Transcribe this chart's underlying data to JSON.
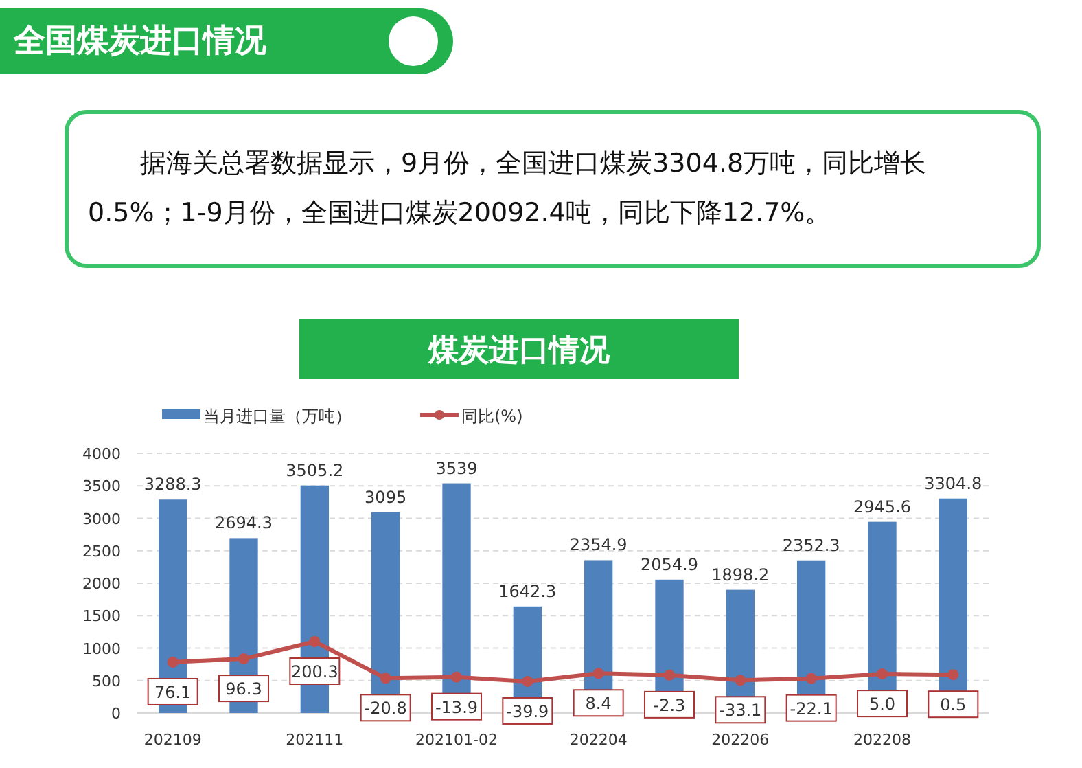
{
  "chart_data": {
    "type": "bar",
    "title": "煤炭进口情况",
    "annotations": [
      "全国煤炭进口情况",
      "据海关总署数据显示，9月份，全国进口煤炭3304.8万吨，同比增长0.5%；1-9月份，全国进口煤炭20092.4吨，同比下降12.7%。"
    ],
    "categories": [
      "202109",
      null,
      "202111",
      null,
      "202101-02",
      null,
      "202204",
      null,
      "202206",
      null,
      "202208",
      null
    ],
    "series": [
      {
        "name": "当月进口量（万吨）",
        "color": "#4f81bd",
        "values": [
          3288.3,
          2694.3,
          3505.2,
          3095,
          3539,
          1642.3,
          2354.9,
          2054.9,
          1898.2,
          2352.3,
          2945.6,
          3304.8
        ]
      },
      {
        "name": "同比(%)",
        "type": "line",
        "axis": "y2",
        "color": "#c0504d",
        "marker": "circle",
        "value_labels": [
          "76.1",
          "96.3",
          "200.3",
          "-20.8",
          "-13.9",
          "-39.9",
          "8.4",
          "-2.3",
          "-33.1",
          "-22.1",
          "5.0",
          "0.5"
        ],
        "values": [
          76.1,
          96.3,
          200.3,
          -20.8,
          -13.9,
          -39.9,
          8.4,
          -2.3,
          -33.1,
          -22.1,
          5.0,
          0.5
        ]
      }
    ],
    "data_labels": true,
    "ylim": [
      0,
      4000
    ],
    "yticks": [
      0,
      500,
      1000,
      1500,
      2000,
      2500,
      3000,
      3500,
      4000
    ],
    "y2lim": [
      -231,
      1337
    ],
    "tick_labels": "y",
    "grid": "y",
    "legend": "top left"
  }
}
